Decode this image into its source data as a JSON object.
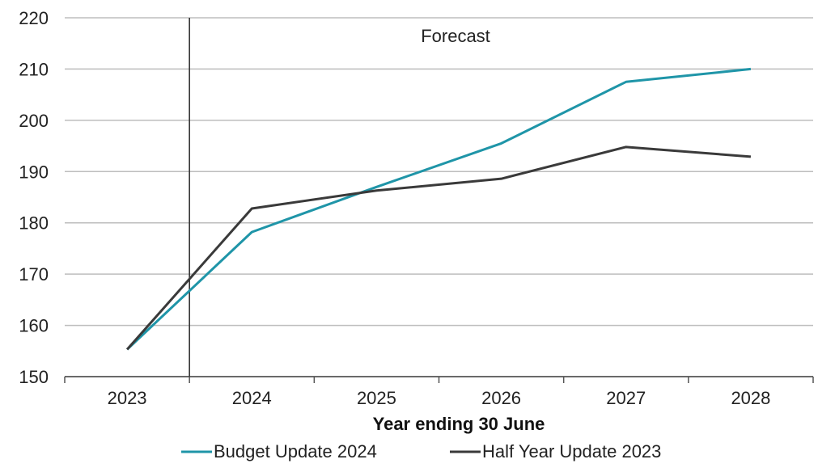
{
  "chart_data": {
    "type": "line",
    "title": "",
    "xlabel": "Year ending 30 June",
    "ylabel": "",
    "categories": [
      "2023",
      "2024",
      "2025",
      "2026",
      "2027",
      "2028"
    ],
    "y_ticks": [
      "150",
      "160",
      "170",
      "180",
      "190",
      "200",
      "210",
      "220"
    ],
    "ylim": [
      150,
      220
    ],
    "grid": "horizontal",
    "legend_position": "bottom",
    "annotation": {
      "text": "Forecast",
      "divider_at_x": 2023.5
    },
    "series": [
      {
        "name": "Budget Update 2024",
        "color": "#1f95a8",
        "values": [
          155.3,
          178.2,
          187.0,
          195.5,
          207.5,
          210.0
        ]
      },
      {
        "name": "Half Year Update 2023",
        "color": "#3a3a3a",
        "values": [
          155.3,
          182.8,
          186.3,
          188.6,
          194.8,
          192.9
        ]
      }
    ]
  }
}
